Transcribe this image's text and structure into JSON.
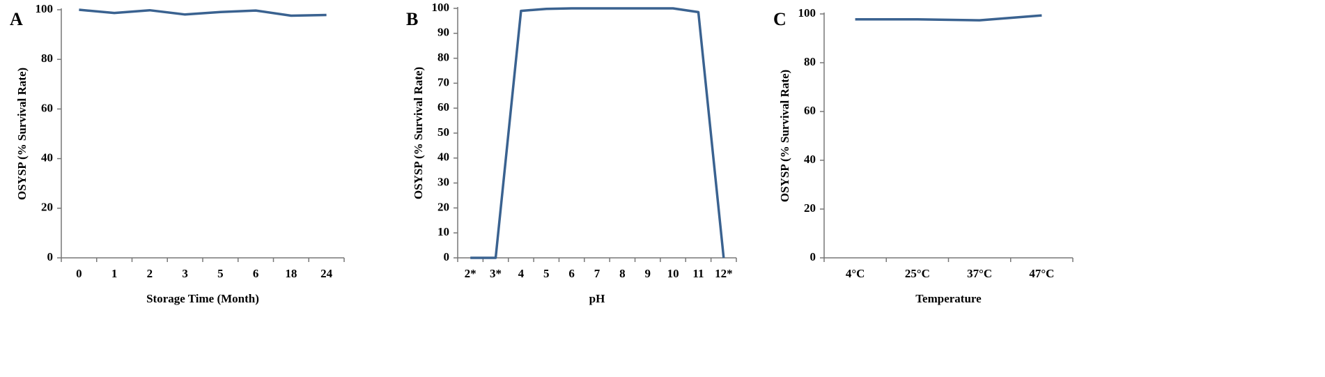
{
  "chart_data": [
    {
      "type": "line",
      "panel": "A",
      "y_label": "OSYSP (% Survival Rate)",
      "x_label": "Storage Time (Month)",
      "categories": [
        "0",
        "1",
        "2",
        "3",
        "5",
        "6",
        "18",
        "24"
      ],
      "values": [
        100,
        98.7,
        99.8,
        98.1,
        99.1,
        99.7,
        97.6,
        97.9
      ],
      "color": "#3a6290",
      "ylim": [
        0,
        100
      ],
      "yticks": [
        0,
        20,
        40,
        60,
        80,
        100
      ]
    },
    {
      "type": "line",
      "panel": "B",
      "y_label": "OSYSP (% Survival Rate)",
      "x_label": "pH",
      "categories": [
        "2*",
        "3*",
        "4",
        "5",
        "6",
        "7",
        "8",
        "9",
        "10",
        "11",
        "12*"
      ],
      "values": [
        0,
        0,
        99,
        99.8,
        100,
        100,
        100,
        100,
        100,
        98.5,
        0
      ],
      "color": "#3a6290",
      "ylim": [
        0,
        100
      ],
      "yticks": [
        0,
        10,
        20,
        30,
        40,
        50,
        60,
        70,
        80,
        90,
        100
      ]
    },
    {
      "type": "line",
      "panel": "C",
      "y_label": "OSYSP (% Survival Rate)",
      "x_label": "Temperature",
      "categories": [
        "4°C",
        "25°C",
        "37°C",
        "47°C"
      ],
      "values": [
        97.8,
        97.8,
        97.4,
        99.4
      ],
      "color": "#3a6290",
      "ylim": [
        0,
        100
      ],
      "yticks": [
        0,
        20,
        40,
        60,
        80,
        100
      ]
    }
  ]
}
